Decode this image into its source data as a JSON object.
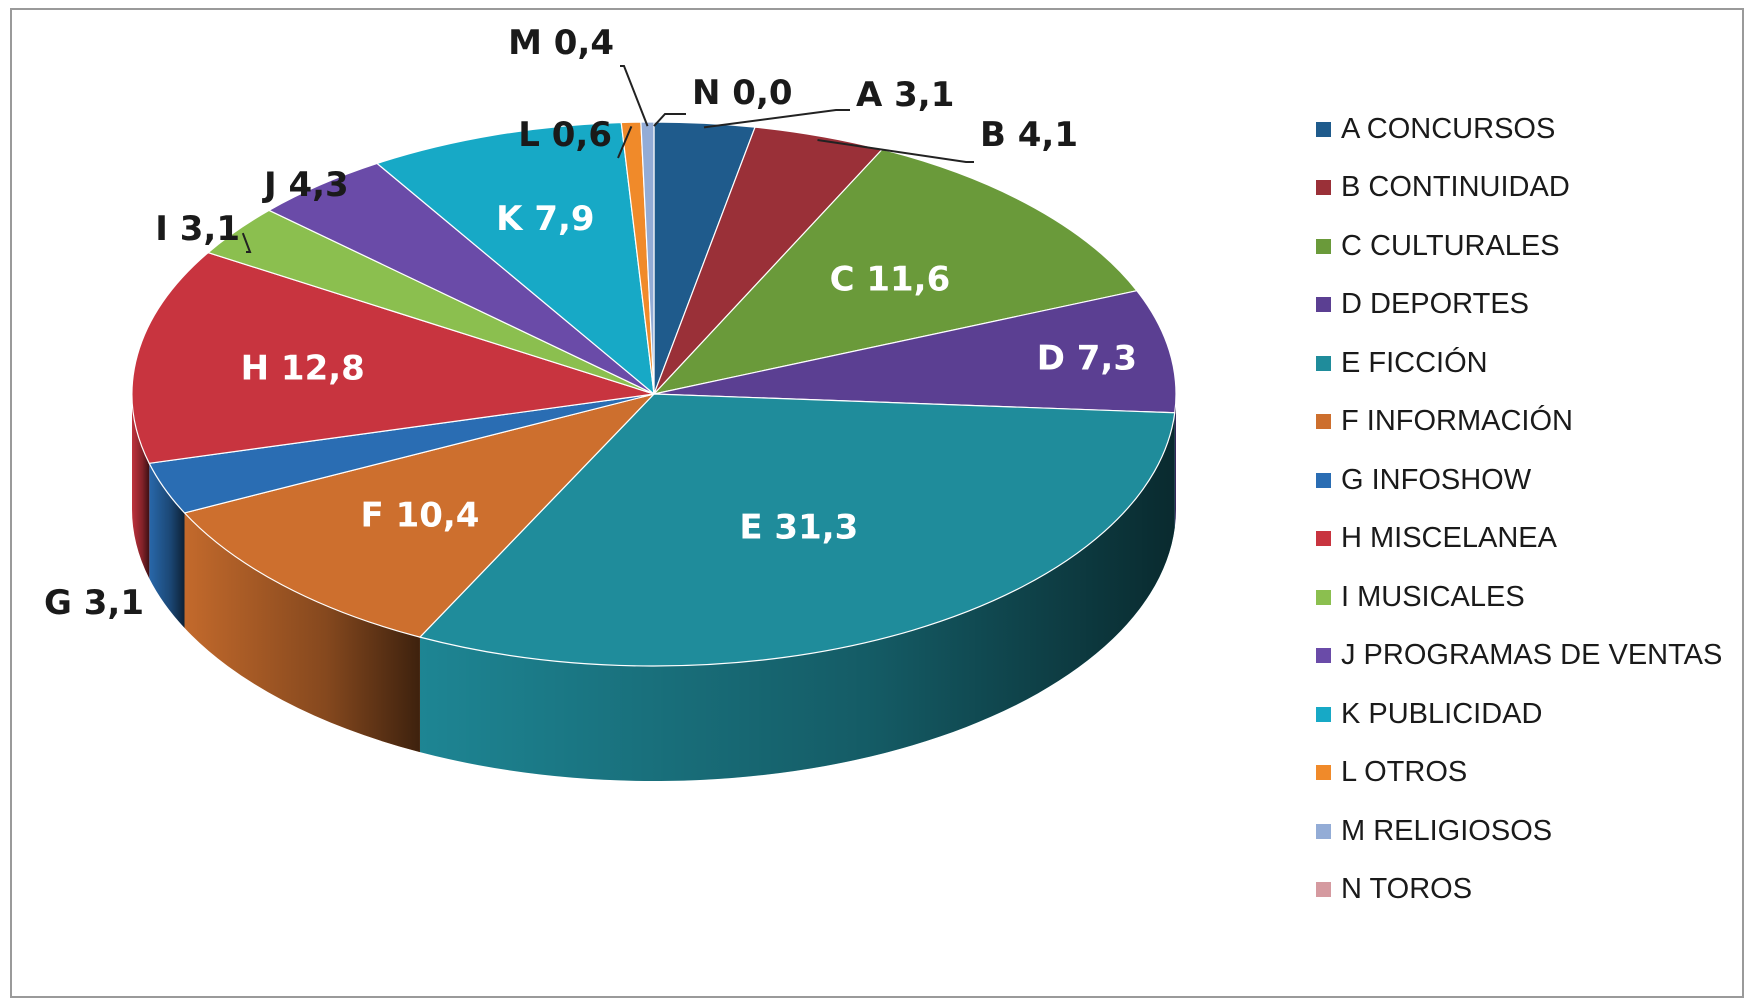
{
  "chart_data": {
    "type": "pie",
    "style": "3d",
    "legend_position": "right",
    "slices": [
      {
        "letter": "A",
        "value": 3.1,
        "value_label": "A 3,1",
        "legend": "A CONCURSOS",
        "color": "#1f5b8c"
      },
      {
        "letter": "B",
        "value": 4.1,
        "value_label": "B 4,1",
        "legend": "B CONTINUIDAD",
        "color": "#9a3038"
      },
      {
        "letter": "C",
        "value": 11.6,
        "value_label": "C 11,6",
        "legend": "C CULTURALES",
        "color": "#6a9a3a"
      },
      {
        "letter": "D",
        "value": 7.3,
        "value_label": "D 7,3",
        "legend": "D DEPORTES",
        "color": "#5b3f92"
      },
      {
        "letter": "E",
        "value": 31.3,
        "value_label": "E 31,3",
        "legend": "E FICCIÓN",
        "color": "#1f8c9b"
      },
      {
        "letter": "F",
        "value": 10.4,
        "value_label": "F 10,4",
        "legend": "F INFORMACIÓN",
        "color": "#cd6f2e"
      },
      {
        "letter": "G",
        "value": 3.1,
        "value_label": "G 3,1",
        "legend": "G INFOSHOW",
        "color": "#2a6db3"
      },
      {
        "letter": "H",
        "value": 12.8,
        "value_label": "H 12,8",
        "legend": "H MISCELANEA",
        "color": "#c8343f"
      },
      {
        "letter": "I",
        "value": 3.1,
        "value_label": "I 3,1",
        "legend": "I MUSICALES",
        "color": "#8bbf4f"
      },
      {
        "letter": "J",
        "value": 4.3,
        "value_label": "J 4,3",
        "legend": "J PROGRAMAS DE VENTAS",
        "color": "#6a4ba8"
      },
      {
        "letter": "K",
        "value": 7.9,
        "value_label": "K 7,9",
        "legend": "K PUBLICIDAD",
        "color": "#17a9c6"
      },
      {
        "letter": "L",
        "value": 0.6,
        "value_label": "L 0,6",
        "legend": "L OTROS",
        "color": "#f08a2a"
      },
      {
        "letter": "M",
        "value": 0.4,
        "value_label": "M 0,4",
        "legend": "M RELIGIOSOS",
        "color": "#93acd6"
      },
      {
        "letter": "N",
        "value": 0.0,
        "value_label": "N 0,0",
        "legend": "N TOROS",
        "color": "#d59aa0"
      }
    ]
  }
}
